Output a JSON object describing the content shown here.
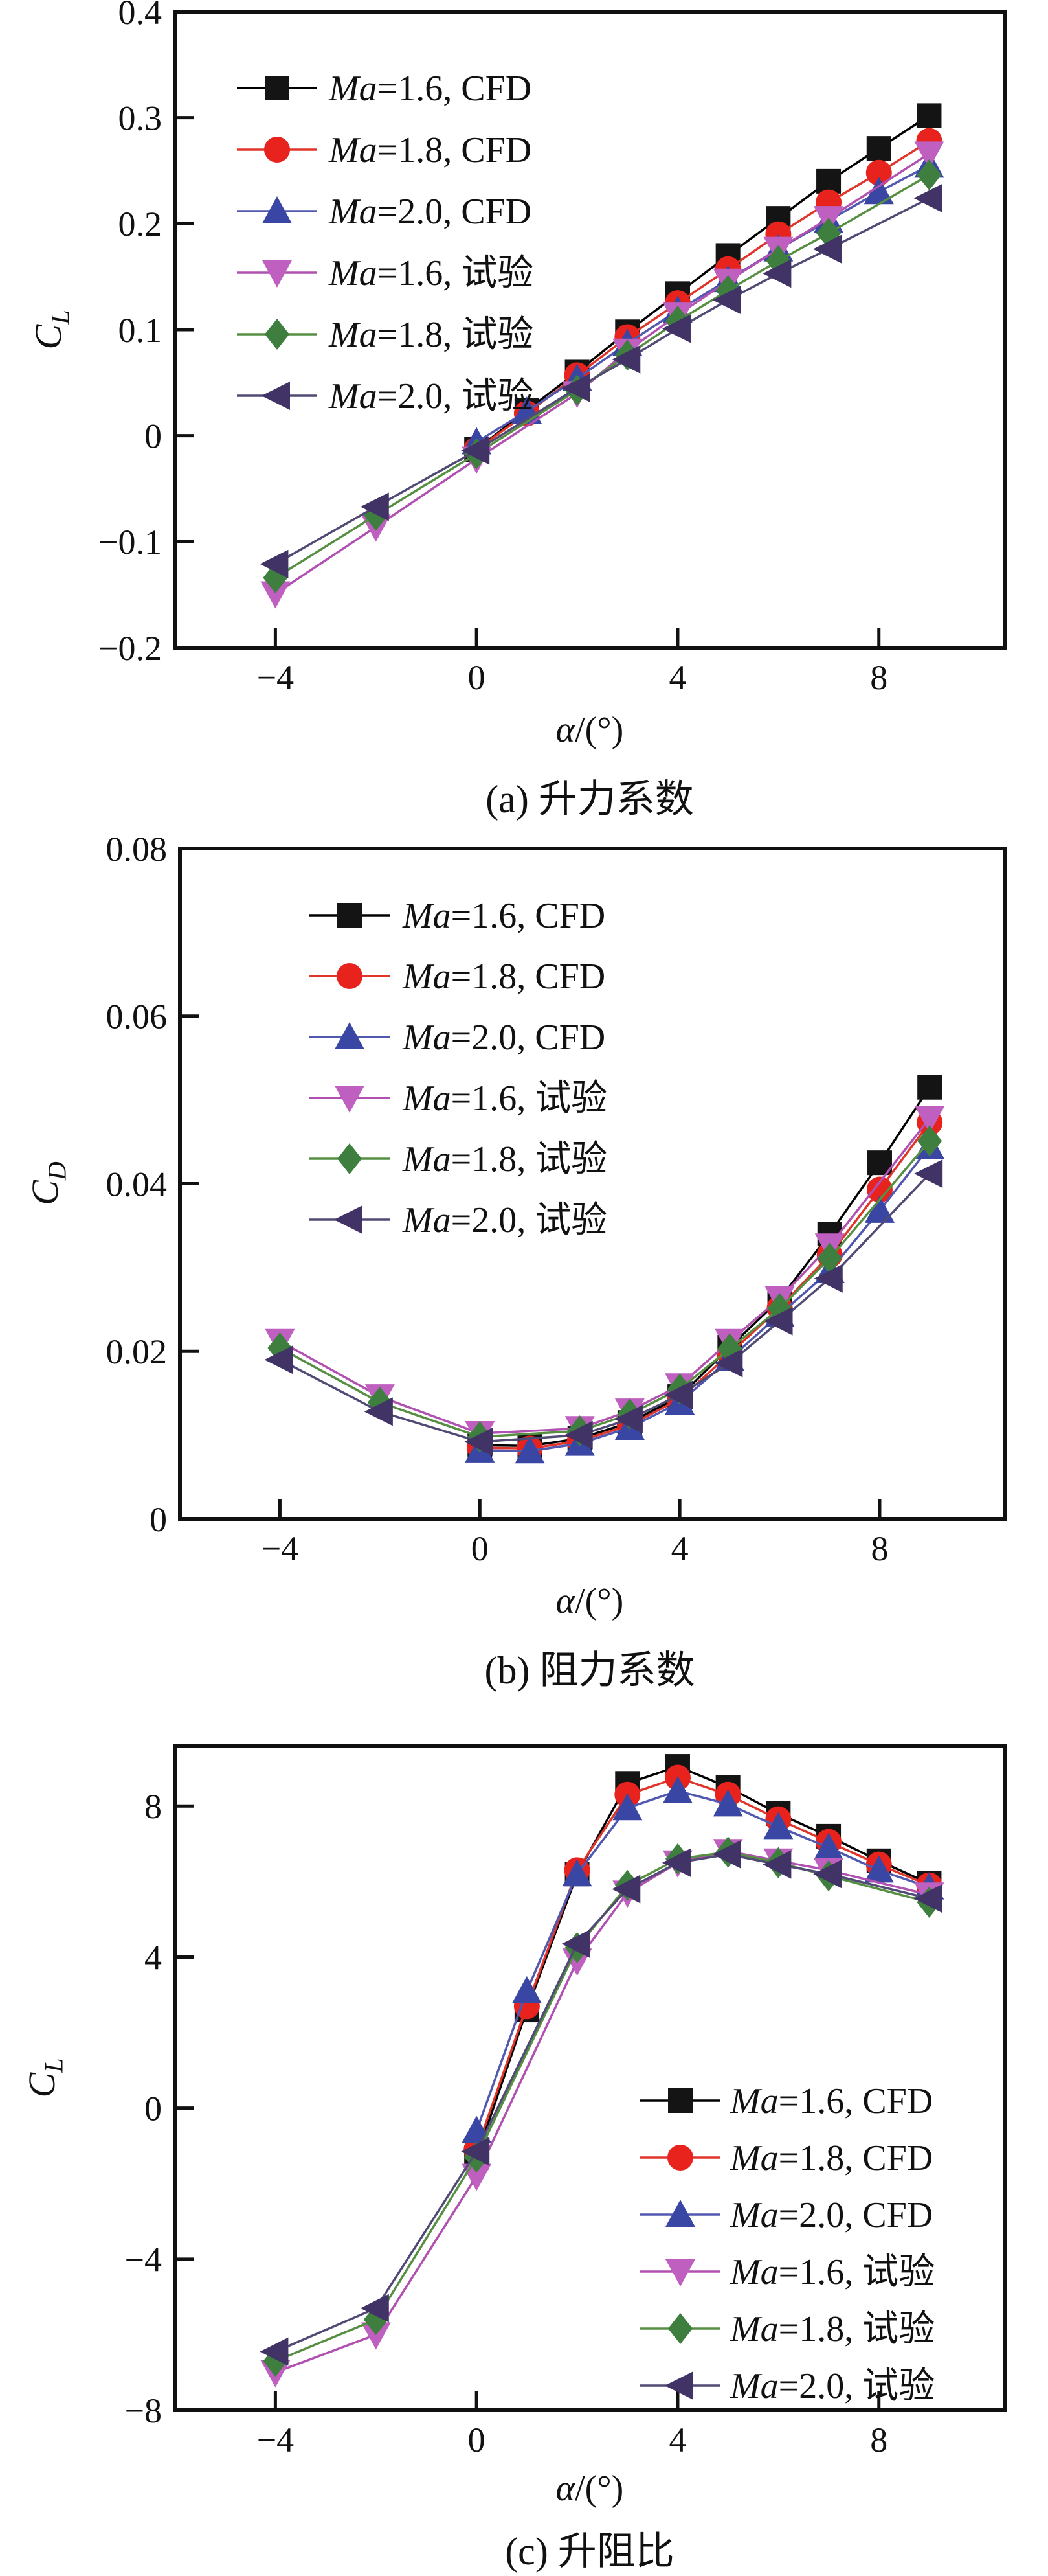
{
  "page": {
    "background": "#ffffff"
  },
  "chart_data": [
    {
      "id": "a",
      "type": "line",
      "caption": "(a) 升力系数",
      "xlabel_italic": "α",
      "xlabel_rest": "/(°)",
      "ylabel_main": "C",
      "ylabel_sub": "L",
      "xlim": [
        -6,
        10.5
      ],
      "ylim": [
        -0.2,
        0.4
      ],
      "grid": false,
      "legend_position": "top-left",
      "xticks": [
        {
          "v": -4,
          "t": "−4"
        },
        {
          "v": 0,
          "t": "0"
        },
        {
          "v": 4,
          "t": "4"
        },
        {
          "v": 8,
          "t": "8"
        }
      ],
      "yticks": [
        {
          "v": 0.4,
          "t": "0.4"
        },
        {
          "v": 0.3,
          "t": "0.3"
        },
        {
          "v": 0.2,
          "t": "0.2"
        },
        {
          "v": 0.1,
          "t": "0.1"
        },
        {
          "v": 0,
          "t": "0"
        },
        {
          "v": -0.1,
          "t": "−0.1"
        },
        {
          "v": -0.2,
          "t": "−0.2"
        }
      ],
      "series": [
        {
          "label_italic": "Ma",
          "label_rest": "=1.6, CFD",
          "marker": "square",
          "color": "#141414",
          "line_color": "#000000",
          "x": [
            0,
            1,
            2,
            3,
            4,
            5,
            6,
            7,
            8,
            9
          ],
          "y": [
            -0.013,
            0.024,
            0.06,
            0.098,
            0.134,
            0.17,
            0.205,
            0.24,
            0.271,
            0.302
          ]
        },
        {
          "label_italic": "Ma",
          "label_rest": "=1.8, CFD",
          "marker": "circle",
          "color": "#e8231d",
          "line_color": "#e0352b",
          "x": [
            0,
            1,
            2,
            3,
            4,
            5,
            6,
            7,
            8,
            9
          ],
          "y": [
            -0.013,
            0.021,
            0.057,
            0.093,
            0.125,
            0.157,
            0.19,
            0.22,
            0.248,
            0.278
          ]
        },
        {
          "label_italic": "Ma",
          "label_rest": "=2.0, CFD",
          "marker": "triangle-up",
          "color": "#3946a4",
          "line_color": "#5058b0",
          "x": [
            0,
            1,
            2,
            3,
            4,
            5,
            6,
            7,
            8,
            9
          ],
          "y": [
            -0.006,
            0.023,
            0.054,
            0.087,
            0.118,
            0.147,
            0.176,
            0.203,
            0.23,
            0.255
          ]
        },
        {
          "label_italic": "Ma",
          "label_rest": "=1.6, 试验",
          "marker": "triangle-down",
          "color": "#bf5fbf",
          "line_color": "#b050b0",
          "x": [
            -4,
            -2,
            0,
            2,
            3,
            4,
            5,
            6,
            7,
            9
          ],
          "y": [
            -0.149,
            -0.086,
            -0.022,
            0.04,
            0.08,
            0.114,
            0.146,
            0.176,
            0.205,
            0.266
          ]
        },
        {
          "label_italic": "Ma",
          "label_rest": "=1.8, 试验",
          "marker": "diamond",
          "color": "#3e7e3e",
          "line_color": "#578f42",
          "x": [
            -4,
            -2,
            0,
            2,
            3,
            4,
            5,
            6,
            7,
            9
          ],
          "y": [
            -0.134,
            -0.075,
            -0.017,
            0.043,
            0.076,
            0.108,
            0.137,
            0.165,
            0.191,
            0.246
          ]
        },
        {
          "label_italic": "Ma",
          "label_rest": "=2.0, 试验",
          "marker": "triangle-left",
          "color": "#413366",
          "line_color": "#514a75",
          "x": [
            -4,
            -2,
            0,
            2,
            3,
            4,
            5,
            6,
            7,
            9
          ],
          "y": [
            -0.121,
            -0.067,
            -0.014,
            0.045,
            0.072,
            0.101,
            0.128,
            0.153,
            0.176,
            0.224
          ]
        }
      ]
    },
    {
      "id": "b",
      "type": "line",
      "caption": "(b) 阻力系数",
      "xlabel_italic": "α",
      "xlabel_rest": "/(°)",
      "ylabel_main": "C",
      "ylabel_sub": "D",
      "xlim": [
        -6,
        10.5
      ],
      "ylim": [
        0,
        0.08
      ],
      "grid": false,
      "legend_position": "top-center-left",
      "xticks": [
        {
          "v": -4,
          "t": "−4"
        },
        {
          "v": 0,
          "t": "0"
        },
        {
          "v": 4,
          "t": "4"
        },
        {
          "v": 8,
          "t": "8"
        }
      ],
      "yticks": [
        {
          "v": 0.08,
          "t": "0.08"
        },
        {
          "v": 0.06,
          "t": "0.06"
        },
        {
          "v": 0.04,
          "t": "0.04"
        },
        {
          "v": 0.02,
          "t": "0.02"
        },
        {
          "v": 0,
          "t": "0"
        }
      ],
      "series": [
        {
          "label_italic": "Ma",
          "label_rest": "=1.6, CFD",
          "marker": "square",
          "color": "#141414",
          "line_color": "#000000",
          "x": [
            0,
            1,
            2,
            3,
            4,
            5,
            6,
            7,
            8,
            9
          ],
          "y": [
            0.0088,
            0.0087,
            0.0096,
            0.0115,
            0.0146,
            0.0205,
            0.0262,
            0.034,
            0.0425,
            0.0515
          ]
        },
        {
          "label_italic": "Ma",
          "label_rest": "=1.8, CFD",
          "marker": "circle",
          "color": "#e8231d",
          "line_color": "#e0352b",
          "x": [
            0,
            1,
            2,
            3,
            4,
            5,
            6,
            7,
            8,
            9
          ],
          "y": [
            0.0085,
            0.0084,
            0.0093,
            0.0112,
            0.0143,
            0.0197,
            0.0252,
            0.0315,
            0.0393,
            0.0473
          ]
        },
        {
          "label_italic": "Ma",
          "label_rest": "=2.0, CFD",
          "marker": "triangle-up",
          "color": "#3946a4",
          "line_color": "#5058b0",
          "x": [
            0,
            1,
            2,
            3,
            4,
            5,
            6,
            7,
            8,
            9
          ],
          "y": [
            0.0082,
            0.0081,
            0.009,
            0.0109,
            0.0139,
            0.0191,
            0.0244,
            0.0296,
            0.0368,
            0.0444
          ]
        },
        {
          "label_italic": "Ma",
          "label_rest": "=1.6, 试验",
          "marker": "triangle-down",
          "color": "#bf5fbf",
          "line_color": "#b050b0",
          "x": [
            -4,
            -2,
            0,
            2,
            3,
            4,
            5,
            6,
            7,
            9
          ],
          "y": [
            0.0212,
            0.0146,
            0.0102,
            0.0108,
            0.0129,
            0.0159,
            0.0212,
            0.0263,
            0.0326,
            0.0478
          ]
        },
        {
          "label_italic": "Ma",
          "label_rest": "=1.8, 试验",
          "marker": "diamond",
          "color": "#3e7e3e",
          "line_color": "#578f42",
          "x": [
            -4,
            -2,
            0,
            2,
            3,
            4,
            5,
            6,
            7,
            9
          ],
          "y": [
            0.0204,
            0.0139,
            0.0098,
            0.0105,
            0.0125,
            0.0155,
            0.0203,
            0.0251,
            0.0311,
            0.0451
          ]
        },
        {
          "label_italic": "Ma",
          "label_rest": "=2.0, 试验",
          "marker": "triangle-left",
          "color": "#413366",
          "line_color": "#514a75",
          "x": [
            -4,
            -2,
            0,
            2,
            3,
            4,
            5,
            6,
            7,
            9
          ],
          "y": [
            0.019,
            0.0128,
            0.0092,
            0.01,
            0.0119,
            0.0148,
            0.0186,
            0.0236,
            0.0287,
            0.0412
          ]
        }
      ]
    },
    {
      "id": "c",
      "type": "line",
      "caption": "(c) 升阻比",
      "xlabel_italic": "α",
      "xlabel_rest": "/(°)",
      "ylabel_main": "C",
      "ylabel_sub": "L",
      "xlim": [
        -6,
        10.5
      ],
      "ylim": [
        -8,
        9.6
      ],
      "grid": false,
      "legend_position": "middle-right",
      "xticks": [
        {
          "v": -4,
          "t": "−4"
        },
        {
          "v": 0,
          "t": "0"
        },
        {
          "v": 4,
          "t": "4"
        },
        {
          "v": 8,
          "t": "8"
        }
      ],
      "yticks": [
        {
          "v": 8,
          "t": "8"
        },
        {
          "v": 4,
          "t": "4"
        },
        {
          "v": 0,
          "t": "0"
        },
        {
          "v": -4,
          "t": "−4"
        },
        {
          "v": -8,
          "t": "−8"
        }
      ],
      "series": [
        {
          "label_italic": "Ma",
          "label_rest": "=1.6, CFD",
          "marker": "square",
          "color": "#141414",
          "line_color": "#000000",
          "x": [
            0,
            1,
            2,
            3,
            4,
            5,
            6,
            7,
            8,
            9
          ],
          "y": [
            -1.3,
            2.6,
            6.2,
            8.6,
            9.05,
            8.5,
            7.8,
            7.2,
            6.55,
            5.95
          ]
        },
        {
          "label_italic": "Ma",
          "label_rest": "=1.8, CFD",
          "marker": "circle",
          "color": "#e8231d",
          "line_color": "#e0352b",
          "x": [
            0,
            1,
            2,
            3,
            4,
            5,
            6,
            7,
            8,
            9
          ],
          "y": [
            -1.1,
            2.7,
            6.3,
            8.3,
            8.75,
            8.3,
            7.65,
            7.05,
            6.45,
            5.9
          ]
        },
        {
          "label_italic": "Ma",
          "label_rest": "=2.0, CFD",
          "marker": "triangle-up",
          "color": "#3946a4",
          "line_color": "#5058b0",
          "x": [
            0,
            1,
            2,
            3,
            4,
            5,
            6,
            7,
            8,
            9
          ],
          "y": [
            -0.6,
            3.1,
            6.2,
            7.95,
            8.4,
            8.05,
            7.45,
            6.9,
            6.3,
            5.85
          ]
        },
        {
          "label_italic": "Ma",
          "label_rest": "=1.6, 试验",
          "marker": "triangle-down",
          "color": "#bf5fbf",
          "line_color": "#b050b0",
          "x": [
            -4,
            -2,
            0,
            2,
            3,
            4,
            5,
            6,
            7,
            9
          ],
          "y": [
            -7.0,
            -6.0,
            -1.8,
            3.9,
            5.7,
            6.5,
            6.8,
            6.55,
            6.3,
            5.65
          ]
        },
        {
          "label_italic": "Ma",
          "label_rest": "=1.8, 试验",
          "marker": "diamond",
          "color": "#3e7e3e",
          "line_color": "#578f42",
          "x": [
            -4,
            -2,
            0,
            2,
            3,
            4,
            5,
            6,
            7,
            9
          ],
          "y": [
            -6.7,
            -5.6,
            -1.3,
            4.25,
            5.9,
            6.6,
            6.78,
            6.5,
            6.15,
            5.45
          ]
        },
        {
          "label_italic": "Ma",
          "label_rest": "=2.0, 试验",
          "marker": "triangle-left",
          "color": "#413366",
          "line_color": "#514a75",
          "x": [
            -4,
            -2,
            0,
            2,
            3,
            4,
            5,
            6,
            7,
            9
          ],
          "y": [
            -6.45,
            -5.3,
            -1.15,
            4.35,
            5.8,
            6.5,
            6.72,
            6.45,
            6.2,
            5.55
          ]
        }
      ]
    }
  ]
}
